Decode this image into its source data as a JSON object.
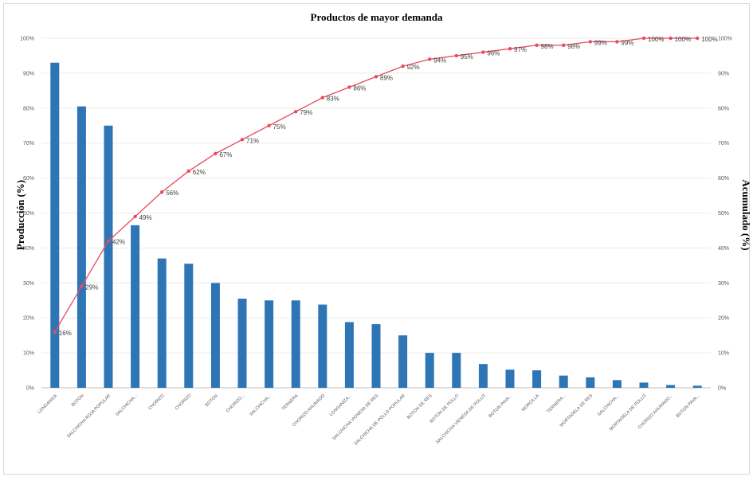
{
  "chart_data": {
    "type": "bar",
    "title": "Productos de mayor demanda",
    "ylabel": "Producción (%)",
    "y2label": "Acumulado (%)",
    "ylim": [
      0,
      100
    ],
    "y2lim": [
      0,
      100
    ],
    "yticks": [
      "0%",
      "10%",
      "20%",
      "30%",
      "40%",
      "50%",
      "60%",
      "70%",
      "80%",
      "90%",
      "100%"
    ],
    "categories": [
      "LONGANIZA",
      "BOTON",
      "SALCHICHA ROJA POPULAR",
      "SALCHICHA...",
      "CHORIZO",
      "CHORIZO",
      "BOTON",
      "CHORIZO...",
      "SALCHICHA...",
      "TERNERA",
      "CHORIZO AHUMADO",
      "LONGANIZA...",
      "SALCHICHA VIONESA DE RES",
      "SALCHICHA DE POLLO POPULAR",
      "BOTON DE RES",
      "BOTON DE POLLO",
      "SALCHICHA VIENESA DE POLLO",
      "BOTON PAVA...",
      "MORCILLA",
      "TERNERA...",
      "MORTADELA DE RES",
      "SALCHICHA...",
      "MORTADELA DE POLLO",
      "CHORIZO AHUMADO...",
      "BOTON PAVA..."
    ],
    "series": [
      {
        "type": "bar",
        "color": "#2e75b6",
        "values": [
          93,
          80.5,
          75,
          46.5,
          37,
          35.5,
          30,
          25.5,
          25,
          25,
          23.8,
          18.8,
          18.2,
          15,
          10,
          10,
          6.8,
          5.2,
          5,
          3.5,
          3,
          2.2,
          1.5,
          0.8,
          0.6
        ]
      },
      {
        "type": "line",
        "axis": "right",
        "color": "#e84a5f",
        "values": [
          16,
          29,
          42,
          49,
          56,
          62,
          67,
          71,
          75,
          79,
          83,
          86,
          89,
          92,
          94,
          95,
          96,
          97,
          98,
          98,
          99,
          99,
          100,
          100,
          100
        ],
        "labels": [
          "16%",
          "29%",
          "42%",
          "49%",
          "56%",
          "62%",
          "67%",
          "71%",
          "75%",
          "79%",
          "83%",
          "86%",
          "89%",
          "92%",
          "94%",
          "95%",
          "96%",
          "97%",
          "98%",
          "98%",
          "99%",
          "99%",
          "100%",
          "100%",
          "100%"
        ]
      }
    ],
    "gridlines": true,
    "legend": "none"
  }
}
